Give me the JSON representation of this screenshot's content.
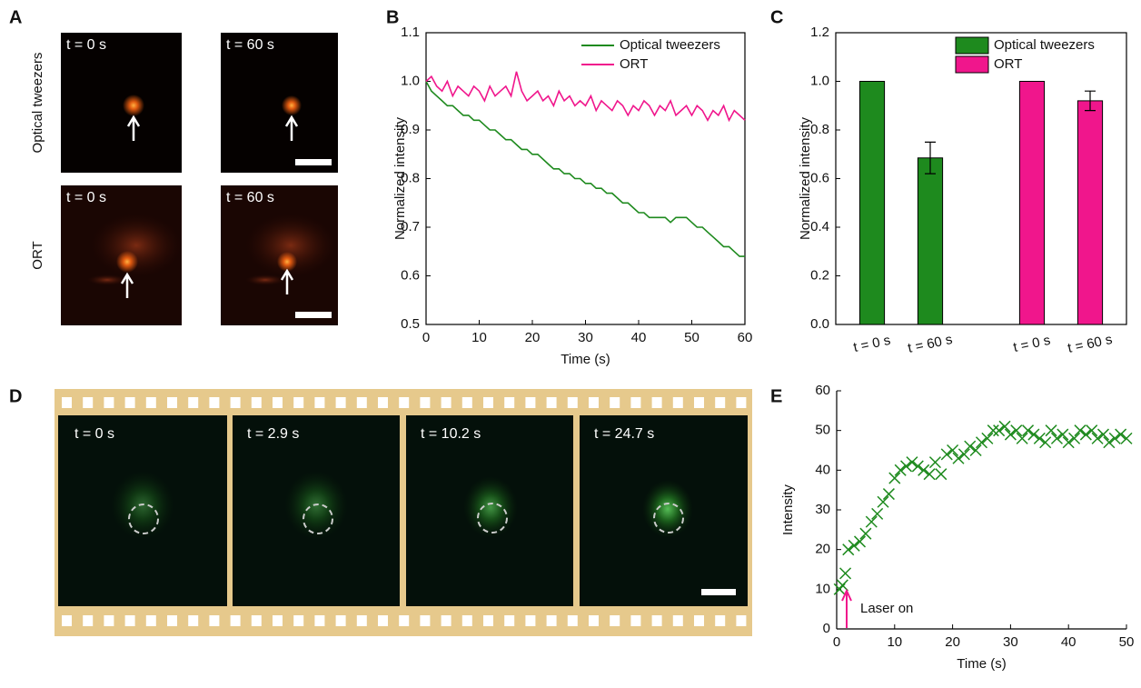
{
  "figure": {
    "panel_labels": [
      "A",
      "B",
      "C",
      "D",
      "E"
    ],
    "panel_a": {
      "row_labels": [
        "Optical tweezers",
        "ORT"
      ],
      "image_labels": [
        "t = 0 s",
        "t = 60 s",
        "t = 0 s",
        "t = 60 s"
      ]
    },
    "panel_d": {
      "image_labels": [
        "t = 0 s",
        "t = 2.9 s",
        "t = 10.2 s",
        "t = 24.7 s"
      ]
    }
  },
  "chart_data": [
    {
      "type": "line",
      "x_label": "Time (s)",
      "y_label": "Normalized intensity",
      "x": [
        0,
        1,
        2,
        3,
        4,
        5,
        6,
        7,
        8,
        9,
        10,
        11,
        12,
        13,
        14,
        15,
        16,
        17,
        18,
        19,
        20,
        21,
        22,
        23,
        24,
        25,
        26,
        27,
        28,
        29,
        30,
        31,
        32,
        33,
        34,
        35,
        36,
        37,
        38,
        39,
        40,
        41,
        42,
        43,
        44,
        45,
        46,
        47,
        48,
        49,
        50,
        51,
        52,
        53,
        54,
        55,
        56,
        57,
        58,
        59,
        60
      ],
      "series": [
        {
          "name": "Optical tweezers",
          "color": "#1e8a1e",
          "values": [
            1.0,
            0.98,
            0.97,
            0.96,
            0.95,
            0.95,
            0.94,
            0.93,
            0.93,
            0.92,
            0.92,
            0.91,
            0.9,
            0.9,
            0.89,
            0.88,
            0.88,
            0.87,
            0.86,
            0.86,
            0.85,
            0.85,
            0.84,
            0.83,
            0.82,
            0.82,
            0.81,
            0.81,
            0.8,
            0.8,
            0.79,
            0.79,
            0.78,
            0.78,
            0.77,
            0.77,
            0.76,
            0.75,
            0.75,
            0.74,
            0.73,
            0.73,
            0.72,
            0.72,
            0.72,
            0.72,
            0.71,
            0.72,
            0.72,
            0.72,
            0.71,
            0.7,
            0.7,
            0.69,
            0.68,
            0.67,
            0.66,
            0.66,
            0.65,
            0.64,
            0.64
          ]
        },
        {
          "name": "ORT",
          "color": "#f0168c",
          "values": [
            1.0,
            1.01,
            0.99,
            0.98,
            1.0,
            0.97,
            0.99,
            0.98,
            0.97,
            0.99,
            0.98,
            0.96,
            0.99,
            0.97,
            0.98,
            0.99,
            0.97,
            1.02,
            0.98,
            0.96,
            0.97,
            0.98,
            0.96,
            0.97,
            0.95,
            0.98,
            0.96,
            0.97,
            0.95,
            0.96,
            0.95,
            0.97,
            0.94,
            0.96,
            0.95,
            0.94,
            0.96,
            0.95,
            0.93,
            0.95,
            0.94,
            0.96,
            0.95,
            0.93,
            0.95,
            0.94,
            0.96,
            0.93,
            0.94,
            0.95,
            0.93,
            0.95,
            0.94,
            0.92,
            0.94,
            0.93,
            0.95,
            0.92,
            0.94,
            0.93,
            0.92
          ]
        }
      ],
      "xlim": [
        0,
        60
      ],
      "xticks": [
        0,
        10,
        20,
        30,
        40,
        50,
        60
      ],
      "ylim": [
        0.5,
        1.1
      ],
      "yticks": [
        0.5,
        0.6,
        0.7,
        0.8,
        0.9,
        {
          "value": 1,
          "label": "1.0"
        },
        1.1
      ],
      "legend": "top-right"
    },
    {
      "type": "bar",
      "y_label": "Normalized intensity",
      "categories": [
        "t = 0 s",
        "t = 60 s",
        "t = 0 s",
        "t = 60 s"
      ],
      "series": [
        {
          "name": "Optical tweezers",
          "color": "#1e8a1e",
          "values": [
            1,
            0.685,
            null,
            null
          ],
          "errors": [
            null,
            0.065,
            null,
            null
          ]
        },
        {
          "name": "ORT",
          "color": "#f0168c",
          "values": [
            null,
            null,
            1,
            0.92
          ],
          "errors": [
            null,
            null,
            null,
            0.04
          ]
        }
      ],
      "ylim": [
        0,
        1.2
      ],
      "yticks": [
        {
          "value": 0,
          "label": "0.0"
        },
        0.2,
        0.4,
        0.6,
        0.8,
        {
          "value": 1,
          "label": "1.0"
        },
        1.2
      ],
      "legend": "top-right"
    },
    {
      "type": "scatter",
      "x_label": "Time (s)",
      "y_label": "Intensity",
      "annotation": "Laser on",
      "x": [
        0.5,
        1,
        1.5,
        2,
        3,
        4,
        5,
        6,
        7,
        8,
        9,
        10,
        11,
        12,
        13,
        14,
        15,
        16,
        17,
        18,
        19,
        20,
        21,
        22,
        23,
        24,
        25,
        26,
        27,
        28,
        29,
        30,
        31,
        32,
        33,
        34,
        35,
        36,
        37,
        38,
        39,
        40,
        41,
        42,
        43,
        44,
        45,
        46,
        47,
        48,
        49,
        50
      ],
      "series": [
        {
          "name": "Intensity",
          "color": "#1e8a1e",
          "values": [
            10,
            11,
            14,
            20,
            21,
            22,
            24,
            27,
            29,
            32,
            34,
            38,
            40,
            41,
            42,
            41,
            40,
            39,
            42,
            39,
            44,
            45,
            43,
            44,
            46,
            45,
            47,
            48,
            50,
            50,
            51,
            49,
            50,
            48,
            50,
            49,
            48,
            47,
            50,
            48,
            49,
            47,
            48,
            50,
            49,
            50,
            48,
            49,
            47,
            48,
            49,
            48
          ]
        }
      ],
      "xlim": [
        0,
        50
      ],
      "xticks": [
        0,
        10,
        20,
        30,
        40,
        50
      ],
      "ylim": [
        0,
        60
      ],
      "yticks": [
        0,
        10,
        20,
        30,
        40,
        50,
        60
      ]
    }
  ]
}
